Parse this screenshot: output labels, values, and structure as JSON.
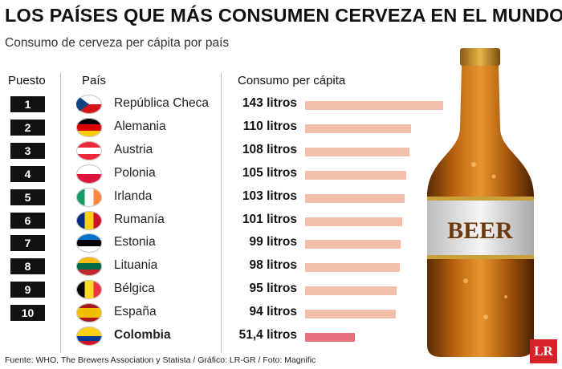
{
  "header": {
    "title": "LOS PAÍSES QUE MÁS CONSUMEN CERVEZA EN EL MUNDO",
    "subtitle": "Consumo de cerveza per cápita por país"
  },
  "table": {
    "col_rank": "Puesto",
    "col_country": "País",
    "col_consumption": "Consumo per cápita"
  },
  "chart_data": {
    "type": "bar",
    "title": "LOS PAÍSES QUE MÁS CONSUMEN CERVEZA EN EL MUNDO",
    "subtitle": "Consumo de cerveza per cápita por país",
    "unit": "litros",
    "rows": [
      {
        "rank": "1",
        "country": "República Checa",
        "value": 143,
        "label": "143 litros",
        "flag": [
          "#ffffff",
          "#d7141a",
          "#11457e"
        ],
        "flag_type": "czech",
        "bar_color": "#f4bfaa",
        "highlight": false
      },
      {
        "rank": "2",
        "country": "Alemania",
        "value": 110,
        "label": "110 litros",
        "flag": [
          "#000000",
          "#dd0000",
          "#ffce00"
        ],
        "flag_type": "h3",
        "bar_color": "#f4bfaa",
        "highlight": false
      },
      {
        "rank": "3",
        "country": "Austria",
        "value": 108,
        "label": "108 litros",
        "flag": [
          "#ed2939",
          "#ffffff",
          "#ed2939"
        ],
        "flag_type": "h3",
        "bar_color": "#f4bfaa",
        "highlight": false
      },
      {
        "rank": "4",
        "country": "Polonia",
        "value": 105,
        "label": "105 litros",
        "flag": [
          "#ffffff",
          "#dc143c"
        ],
        "flag_type": "h2",
        "bar_color": "#f4bfaa",
        "highlight": false
      },
      {
        "rank": "5",
        "country": "Irlanda",
        "value": 103,
        "label": "103 litros",
        "flag": [
          "#169b62",
          "#ffffff",
          "#ff883e"
        ],
        "flag_type": "v3",
        "bar_color": "#f4bfaa",
        "highlight": false
      },
      {
        "rank": "6",
        "country": "Rumanía",
        "value": 101,
        "label": "101 litros",
        "flag": [
          "#002b7f",
          "#fcd116",
          "#ce1126"
        ],
        "flag_type": "v3",
        "bar_color": "#f4bfaa",
        "highlight": false
      },
      {
        "rank": "7",
        "country": "Estonia",
        "value": 99,
        "label": "99 litros",
        "flag": [
          "#0072ce",
          "#000000",
          "#ffffff"
        ],
        "flag_type": "h3",
        "bar_color": "#f4bfaa",
        "highlight": false
      },
      {
        "rank": "8",
        "country": "Lituania",
        "value": 98,
        "label": "98 litros",
        "flag": [
          "#fdb913",
          "#006a44",
          "#c1272d"
        ],
        "flag_type": "h3",
        "bar_color": "#f4bfaa",
        "highlight": false
      },
      {
        "rank": "9",
        "country": "Bélgica",
        "value": 95,
        "label": "95 litros",
        "flag": [
          "#000000",
          "#fdda24",
          "#ef3340"
        ],
        "flag_type": "v3",
        "bar_color": "#f4bfaa",
        "highlight": false
      },
      {
        "rank": "10",
        "country": "España",
        "value": 94,
        "label": "94 litros",
        "flag": [
          "#aa151b",
          "#f1bf00",
          "#aa151b"
        ],
        "flag_type": "spain",
        "bar_color": "#f4bfaa",
        "highlight": false
      },
      {
        "rank": "",
        "country": "Colombia",
        "value": 51.4,
        "label": "51,4 litros",
        "flag": [
          "#fcd116",
          "#003893",
          "#ce1126"
        ],
        "flag_type": "colombia",
        "bar_color": "#e8707c",
        "highlight": true
      }
    ]
  },
  "bottle": {
    "label": "BEER"
  },
  "footer": {
    "source": "Fuente: WHO, The Brewers Association y Statista / Gráfico: LR-GR / Foto: Magnific",
    "logo": "LR"
  }
}
